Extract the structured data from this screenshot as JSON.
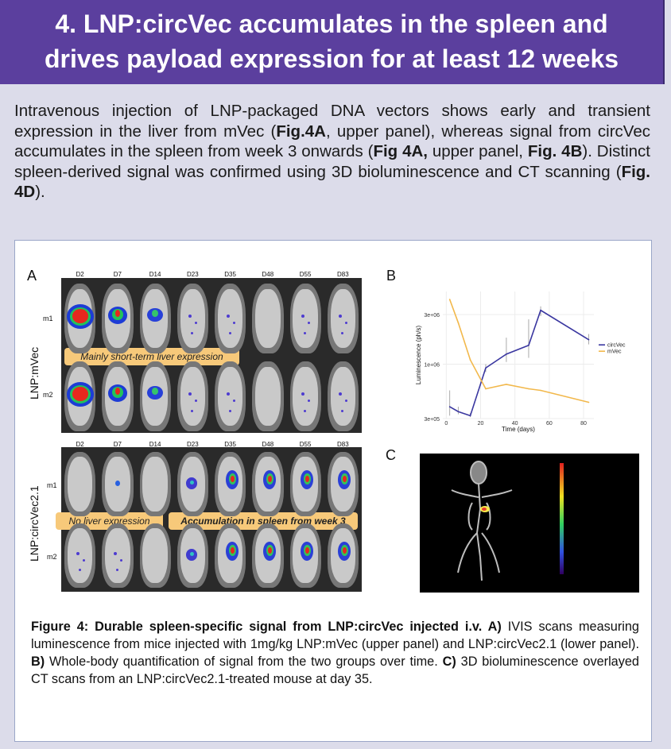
{
  "header": {
    "title_line1": "4. LNP:circVec accumulates in the spleen and",
    "title_line2": "drives payload expression for at least 12 weeks"
  },
  "intro": {
    "p1": "Intravenous injection of LNP-packaged DNA vectors shows early and transient expression in the liver from mVec (",
    "b1": "Fig.4A",
    "p2": ", upper panel), whereas signal from circVec accumulates in the spleen from week 3 onwards (",
    "b2": "Fig 4A,",
    "p3": " upper panel, ",
    "b3": "Fig. 4B",
    "p4": "). Distinct spleen-derived signal was confirmed using 3D bioluminescence and CT scanning (",
    "b4": "Fig. 4D",
    "p5": ")."
  },
  "figure": {
    "panel_a_label": "A",
    "panel_b_label": "B",
    "panel_c_label": "C",
    "days": [
      "D2",
      "D7",
      "D14",
      "D23",
      "D35",
      "D48",
      "D55",
      "D83"
    ],
    "upper_group_label": "LNP:mVec",
    "lower_group_label": "LNP:circVec2.1",
    "m1_label": "m1",
    "m2_label": "m2",
    "tag_liver": "Mainly short-term liver expression",
    "tag_no_liver": "No liver expression",
    "tag_spleen": "Accumulation in spleen from week 3",
    "colors": {
      "header_bg": "#5b3f9e",
      "circvec": "#3a37a0",
      "mvec": "#f2b84b",
      "tag_bg": "#f7c97a"
    }
  },
  "chart_data": {
    "type": "line",
    "xlabel": "Time (days)",
    "ylabel": "Luminescence (ph/s)",
    "y_scale": "log",
    "xlim": [
      -2,
      86
    ],
    "ylim": [
      300000,
      5000000
    ],
    "x_ticks": [
      0,
      20,
      40,
      60,
      80
    ],
    "y_ticks": [
      {
        "value": 300000,
        "label": "3e+05"
      },
      {
        "value": 1000000,
        "label": "1e+06"
      },
      {
        "value": 3000000,
        "label": "3e+06"
      }
    ],
    "legend_position": "right",
    "series": [
      {
        "name": "circVec",
        "color": "#3a37a0",
        "x": [
          2,
          7,
          14,
          23,
          35,
          48,
          55,
          83
        ],
        "y": [
          390000,
          350000,
          320000,
          920000,
          1250000,
          1520000,
          3300000,
          1720000
        ],
        "err_high": [
          560000,
          390000,
          340000,
          1000000,
          1800000,
          2700000,
          3600000,
          1950000
        ],
        "err_low": [
          320000,
          330000,
          310000,
          840000,
          1050000,
          1150000,
          2900000,
          1550000
        ]
      },
      {
        "name": "mVec",
        "color": "#f2b84b",
        "x": [
          2,
          7,
          14,
          23,
          35,
          48,
          55,
          83
        ],
        "y": [
          4200000,
          2500000,
          1100000,
          580000,
          640000,
          580000,
          560000,
          430000
        ]
      }
    ]
  },
  "caption": {
    "bold": "Figure 4: Durable spleen-specific signal from LNP:circVec injected i.v. A)",
    "t1": " IVIS scans measuring luminescence from mice injected with 1mg/kg LNP:mVec (upper panel) and LNP:circVec2.1 (lower panel). ",
    "b2": "B)",
    "t2": " Whole-body quantification of signal from the two groups over time. ",
    "b3": "C)",
    "t3": " 3D bioluminescence overlayed CT scans from an LNP:circVec2.1-treated mouse at day 35."
  }
}
